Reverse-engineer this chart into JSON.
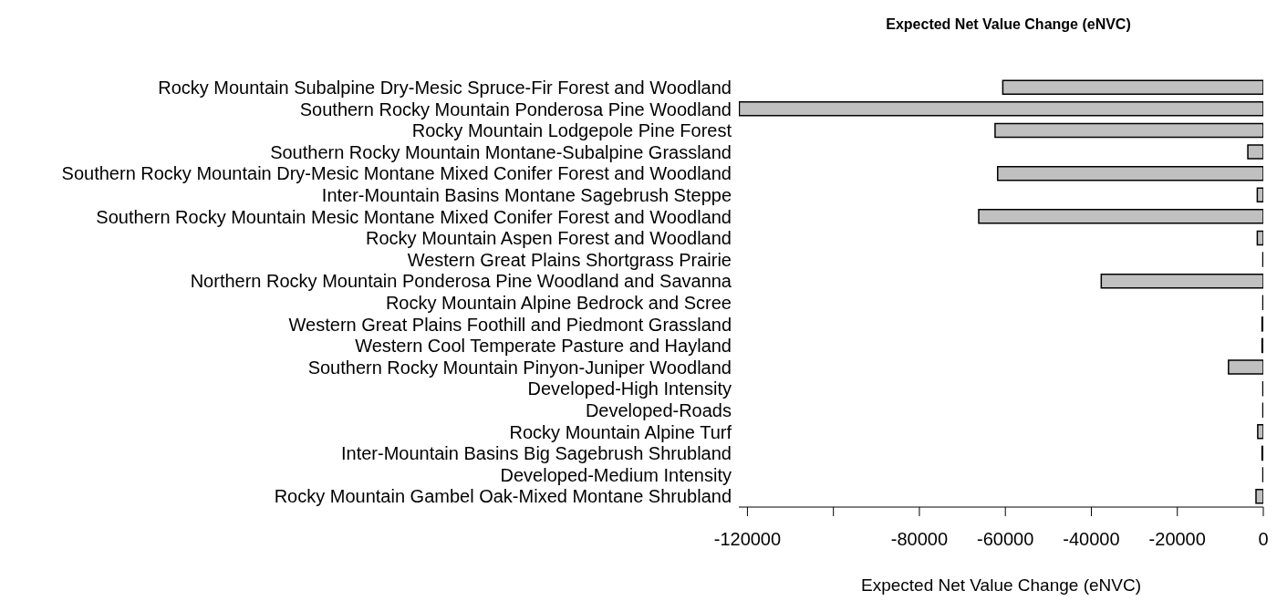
{
  "chart_data": {
    "type": "bar",
    "orientation": "horizontal",
    "title": "Expected Net Value Change (eNVC)",
    "xlabel": "Expected Net Value Change (eNVC)",
    "categories": [
      "Rocky Mountain Subalpine Dry-Mesic Spruce-Fir Forest and Woodland",
      "Southern Rocky Mountain Ponderosa Pine Woodland",
      "Rocky Mountain Lodgepole Pine Forest",
      "Southern Rocky Mountain Montane-Subalpine Grassland",
      "Southern Rocky Mountain Dry-Mesic Montane Mixed Conifer Forest and Woodland",
      "Inter-Mountain Basins Montane Sagebrush Steppe",
      "Southern Rocky Mountain Mesic Montane Mixed Conifer Forest and Woodland",
      "Rocky Mountain Aspen Forest and Woodland",
      "Western Great Plains Shortgrass Prairie",
      "Northern Rocky Mountain Ponderosa Pine Woodland and Savanna",
      "Rocky Mountain Alpine Bedrock and Scree",
      "Western Great Plains Foothill and Piedmont Grassland",
      "Western Cool Temperate Pasture and Hayland",
      "Southern Rocky Mountain Pinyon-Juniper Woodland",
      "Developed-High Intensity",
      "Developed-Roads",
      "Rocky Mountain Alpine Turf",
      "Inter-Mountain Basins Big Sagebrush Shrubland",
      "Developed-Medium Intensity",
      "Rocky Mountain Gambel Oak-Mixed Montane Shrubland"
    ],
    "values": [
      -60600,
      -121900,
      -62400,
      -3600,
      -61800,
      -1400,
      -66200,
      -1400,
      -100,
      -37700,
      -100,
      -300,
      -300,
      -8100,
      -100,
      -100,
      -1300,
      -300,
      -100,
      -1700
    ],
    "color": "#c0c0c0",
    "xlim": [
      -122000,
      0
    ],
    "xticks": [
      -120000,
      {
        "value": -100000,
        "label": null
      },
      -80000,
      -60000,
      -40000,
      -20000,
      0
    ]
  }
}
